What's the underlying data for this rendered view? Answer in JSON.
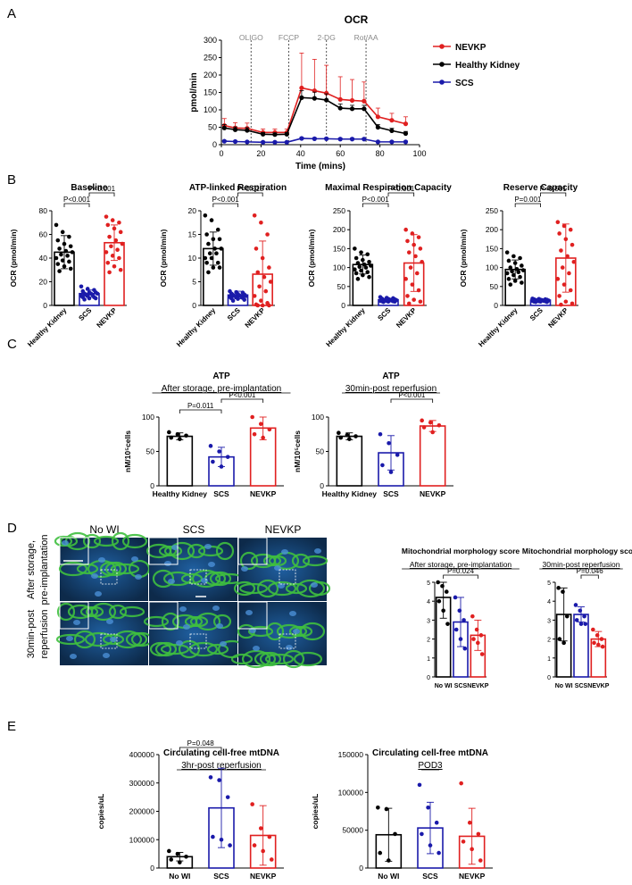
{
  "panel_letters": [
    "A",
    "B",
    "C",
    "D",
    "E"
  ],
  "colors": {
    "healthy": "#000000",
    "scs": "#1a1aaa",
    "nevkp": "#e02020",
    "muted": "#888888"
  },
  "chart_data": [
    {
      "id": "A",
      "type": "line",
      "title": "OCR",
      "subtitle": "",
      "xlabel": "Time (mins)",
      "ylabel": "pmol/min",
      "xlim": [
        0,
        100
      ],
      "ylim": [
        0,
        300
      ],
      "xticks": [
        0,
        20,
        40,
        60,
        80,
        100
      ],
      "yticks": [
        0,
        50,
        100,
        150,
        200,
        250,
        300
      ],
      "injections": [
        {
          "label": "OLIGO",
          "x": 15
        },
        {
          "label": "FCCP",
          "x": 34
        },
        {
          "label": "2-DG",
          "x": 53
        },
        {
          "label": "Rot/AA",
          "x": 73
        }
      ],
      "legend_position": "top-right",
      "series": [
        {
          "name": "NEVKP",
          "color": "nevkp",
          "x": [
            1.5,
            7,
            13,
            21,
            27,
            33,
            40.5,
            47,
            53,
            60,
            66,
            72,
            79,
            86,
            93
          ],
          "y": [
            55,
            48,
            47,
            35,
            35,
            35,
            163,
            155,
            148,
            130,
            127,
            125,
            80,
            70,
            60
          ],
          "err": [
            20,
            15,
            15,
            10,
            10,
            10,
            100,
            90,
            80,
            65,
            60,
            55,
            25,
            20,
            20
          ]
        },
        {
          "name": "Healthy Kidney",
          "color": "healthy",
          "x": [
            1.5,
            7,
            13,
            21,
            27,
            33,
            40.5,
            47,
            53,
            60,
            66,
            72,
            79,
            86,
            93
          ],
          "y": [
            48,
            43,
            41,
            30,
            29,
            30,
            135,
            133,
            128,
            105,
            103,
            103,
            50,
            40,
            32
          ],
          "err": [
            10,
            8,
            8,
            5,
            5,
            5,
            20,
            18,
            18,
            12,
            10,
            10,
            8,
            7,
            6
          ]
        },
        {
          "name": "SCS",
          "color": "scs",
          "x": [
            1.5,
            7,
            13,
            21,
            27,
            33,
            40.5,
            47,
            53,
            60,
            66,
            72,
            79,
            86,
            93
          ],
          "y": [
            10,
            9,
            8,
            7,
            7,
            7,
            18,
            17,
            17,
            16,
            16,
            16,
            8,
            8,
            8
          ],
          "err": [
            2,
            2,
            2,
            2,
            2,
            2,
            3,
            3,
            3,
            3,
            3,
            3,
            2,
            2,
            2
          ]
        }
      ]
    },
    {
      "id": "B1",
      "type": "bar",
      "title": "Baseline",
      "subtitle": "",
      "ylabel": "OCR (pmol/min)",
      "ylim": [
        0,
        80
      ],
      "yticks": [
        0,
        20,
        40,
        60,
        80
      ],
      "categories": [
        "Healthy Kidney",
        "SCS",
        "NEVKP"
      ],
      "colors": [
        "healthy",
        "scs",
        "nevkp"
      ],
      "values": [
        45,
        10,
        53
      ],
      "err": [
        14,
        3,
        15
      ],
      "points": [
        [
          68,
          62,
          58,
          55,
          52,
          50,
          48,
          46,
          45,
          43,
          42,
          40,
          38,
          37,
          35,
          33,
          31,
          29
        ],
        [
          16,
          14,
          13,
          12,
          11,
          11,
          10,
          10,
          10,
          9,
          9,
          8,
          8,
          7,
          7,
          6,
          6,
          5
        ],
        [
          75,
          72,
          70,
          68,
          65,
          62,
          58,
          55,
          52,
          50,
          47,
          45,
          42,
          40,
          36,
          33,
          30,
          28
        ]
      ],
      "brackets": [
        {
          "a": 0,
          "b": 1,
          "label": "P<0.001",
          "level": 0
        },
        {
          "a": 1,
          "b": 2,
          "label": "P<0.001",
          "level": 1
        }
      ],
      "xlabels_rotated": true
    },
    {
      "id": "B2",
      "type": "bar",
      "title": "ATP-linked Respiration",
      "subtitle": "",
      "ylabel": "OCR (pmol/min)",
      "ylim": [
        0,
        20
      ],
      "yticks": [
        0,
        5,
        10,
        15,
        20
      ],
      "categories": [
        "Healthy Kidney",
        "SCS",
        "NEVKP"
      ],
      "colors": [
        "healthy",
        "scs",
        "nevkp"
      ],
      "values": [
        12,
        2.2,
        6.6
      ],
      "err": [
        3.5,
        0.8,
        7
      ],
      "points": [
        [
          19,
          18,
          16,
          15,
          14,
          14,
          13,
          12,
          12,
          11,
          11,
          10,
          10,
          9,
          9,
          8,
          8,
          7
        ],
        [
          3,
          2.8,
          2.7,
          2.5,
          2.4,
          2.3,
          2.2,
          2.1,
          2,
          2,
          1.9,
          1.8,
          1.7,
          1.6,
          1.5,
          1.4,
          1.2,
          1
        ],
        [
          19,
          17.5,
          15,
          12,
          10,
          8,
          7,
          6,
          5,
          4,
          3,
          2,
          1,
          0.5,
          0.2,
          0,
          0,
          0
        ]
      ],
      "brackets": [
        {
          "a": 0,
          "b": 1,
          "label": "P<0.001",
          "level": 0
        },
        {
          "a": 1,
          "b": 2,
          "label": "P=0.015",
          "level": 1
        }
      ],
      "xlabels_rotated": true
    },
    {
      "id": "B3",
      "type": "bar",
      "title": "Maximal Respiration Capacity",
      "subtitle": "",
      "ylabel": "OCR (pmol/min)",
      "ylim": [
        0,
        250
      ],
      "yticks": [
        0,
        50,
        100,
        150,
        200,
        250
      ],
      "categories": [
        "Healthy Kidney",
        "SCS",
        "NEVKP"
      ],
      "colors": [
        "healthy",
        "scs",
        "nevkp"
      ],
      "values": [
        108,
        15,
        112
      ],
      "err": [
        25,
        4,
        75
      ],
      "points": [
        [
          150,
          140,
          135,
          125,
          120,
          115,
          112,
          108,
          105,
          102,
          100,
          95,
          92,
          88,
          85,
          80,
          75,
          70
        ],
        [
          22,
          20,
          19,
          18,
          17,
          16,
          15,
          15,
          14,
          14,
          13,
          12,
          12,
          11,
          11,
          10,
          10,
          9
        ],
        [
          200,
          190,
          180,
          170,
          160,
          150,
          140,
          130,
          115,
          100,
          85,
          70,
          55,
          40,
          25,
          15,
          10,
          5
        ]
      ],
      "brackets": [
        {
          "a": 0,
          "b": 1,
          "label": "P<0.001",
          "level": 0
        },
        {
          "a": 1,
          "b": 2,
          "label": "P<0.001",
          "level": 1
        }
      ],
      "xlabels_rotated": true
    },
    {
      "id": "B4",
      "type": "bar",
      "title": "Reserve Capacity",
      "subtitle": "",
      "ylabel": "OCR (pmol/min)",
      "ylim": [
        0,
        250
      ],
      "yticks": [
        0,
        50,
        100,
        150,
        200,
        250
      ],
      "categories": [
        "Healthy Kidney",
        "SCS",
        "NEVKP"
      ],
      "colors": [
        "healthy",
        "scs",
        "nevkp"
      ],
      "values": [
        95,
        14,
        125
      ],
      "err": [
        25,
        3,
        90
      ],
      "points": [
        [
          140,
          130,
          125,
          118,
          112,
          105,
          100,
          96,
          93,
          90,
          88,
          85,
          80,
          75,
          70,
          65,
          60,
          55
        ],
        [
          18,
          17,
          16,
          16,
          15,
          15,
          14,
          14,
          13,
          13,
          12,
          12,
          11,
          11,
          10,
          10,
          9,
          9
        ],
        [
          220,
          210,
          200,
          190,
          175,
          160,
          145,
          130,
          115,
          100,
          85,
          70,
          55,
          40,
          25,
          10,
          5,
          2
        ]
      ],
      "brackets": [
        {
          "a": 0,
          "b": 1,
          "label": "P=0.001",
          "level": 0
        },
        {
          "a": 1,
          "b": 2,
          "label": "P<0.001",
          "level": 1
        }
      ],
      "xlabels_rotated": true
    },
    {
      "id": "C1",
      "type": "bar",
      "title": "ATP",
      "subtitle": "After storage, pre-implantation",
      "ylabel": "nM/10⁵cells",
      "ylim": [
        0,
        100
      ],
      "yticks": [
        0,
        50,
        100
      ],
      "categories": [
        "Healthy Kidney",
        "SCS",
        "NEVKP"
      ],
      "colors": [
        "healthy",
        "scs",
        "nevkp"
      ],
      "values": [
        72,
        42,
        84
      ],
      "err": [
        5,
        14,
        17
      ],
      "points": [
        [
          78,
          75,
          73,
          70,
          68
        ],
        [
          58,
          50,
          42,
          35,
          28
        ],
        [
          100,
          90,
          82,
          75,
          70
        ]
      ],
      "brackets": [
        {
          "a": 0,
          "b": 1,
          "label": "P=0.011",
          "level": 0
        },
        {
          "a": 1,
          "b": 2,
          "label": "P<0.001",
          "level": 1
        }
      ],
      "xlabels_rotated": false
    },
    {
      "id": "C2",
      "type": "bar",
      "title": "ATP",
      "subtitle": "30min-post reperfusion",
      "ylabel": "nM/10⁵cells",
      "ylim": [
        0,
        100
      ],
      "yticks": [
        0,
        50,
        100
      ],
      "categories": [
        "Healthy Kidney",
        "SCS",
        "NEVKP"
      ],
      "colors": [
        "healthy",
        "scs",
        "nevkp"
      ],
      "values": [
        72,
        48,
        87
      ],
      "err": [
        5,
        25,
        8
      ],
      "points": [
        [
          77,
          74,
          72,
          70,
          68
        ],
        [
          75,
          62,
          45,
          30,
          20
        ],
        [
          95,
          92,
          88,
          85,
          78
        ]
      ],
      "brackets": [
        {
          "a": 1,
          "b": 2,
          "label": "P<0.001",
          "level": 1
        }
      ],
      "xlabels_rotated": false
    },
    {
      "id": "D1",
      "type": "bar",
      "title": "Mitochondrial morphology score",
      "subtitle": "After storage, pre-implantation",
      "ylabel": "",
      "ylim": [
        0,
        5
      ],
      "yticks": [
        0,
        1,
        2,
        3,
        4,
        5
      ],
      "categories": [
        "No WI",
        "SCS",
        "NEVKP"
      ],
      "colors": [
        "healthy",
        "scs",
        "nevkp"
      ],
      "values": [
        4.2,
        2.9,
        2.2
      ],
      "err": [
        1.1,
        1.3,
        0.8
      ],
      "points": [
        [
          5,
          4.8,
          4.5,
          4,
          3.5,
          2.8
        ],
        [
          4.2,
          3.5,
          3,
          2.5,
          2,
          1.5
        ],
        [
          3.2,
          2.5,
          2.2,
          2,
          1.8,
          1.2
        ]
      ],
      "brackets": [
        {
          "a": 0,
          "b": 2,
          "label": "P=0.024",
          "level": 0
        }
      ],
      "xlabels_rotated": false
    },
    {
      "id": "D2",
      "type": "bar",
      "title": "Mitochondrial morphology score",
      "subtitle": "30min-post reperfusion",
      "ylabel": "",
      "ylim": [
        0,
        5
      ],
      "yticks": [
        0,
        1,
        2,
        3,
        4,
        5
      ],
      "categories": [
        "No WI",
        "SCS",
        "NEVKP"
      ],
      "colors": [
        "healthy",
        "scs",
        "nevkp"
      ],
      "values": [
        3.3,
        3.3,
        2.0
      ],
      "err": [
        1.4,
        0.4,
        0.4
      ],
      "points": [
        [
          4.7,
          4.5,
          3.2,
          2,
          1.8
        ],
        [
          3.8,
          3.5,
          3.2,
          3,
          2.8,
          2.8
        ],
        [
          2.5,
          2.2,
          2,
          1.8,
          1.7,
          1.6
        ]
      ],
      "brackets": [
        {
          "a": 1,
          "b": 2,
          "label": "P=0.046",
          "level": 0
        }
      ],
      "xlabels_rotated": false
    },
    {
      "id": "E1",
      "type": "bar",
      "title": "Circulating cell-free mtDNA",
      "subtitle": "3hr-post reperfusion",
      "ylabel": "copies/uL",
      "ylim": [
        0,
        400000
      ],
      "yticks": [
        0,
        100000,
        200000,
        300000,
        400000
      ],
      "categories": [
        "No WI",
        "SCS",
        "NEVKP"
      ],
      "colors": [
        "healthy",
        "scs",
        "nevkp"
      ],
      "values": [
        40000,
        212000,
        115000
      ],
      "err": [
        15000,
        140000,
        105000
      ],
      "points": [
        [
          60000,
          50000,
          40000,
          30000,
          20000
        ],
        [
          320000,
          310000,
          250000,
          110000,
          100000,
          80000
        ],
        [
          225000,
          140000,
          110000,
          80000,
          60000,
          30000
        ]
      ],
      "brackets": [
        {
          "a": 0,
          "b": 1,
          "label": "P=0.048",
          "level": 0
        }
      ],
      "xlabels_rotated": false
    },
    {
      "id": "E2",
      "type": "bar",
      "title": "Circulating cell-free mtDNA",
      "subtitle": "POD3",
      "ylabel": "copies/uL",
      "ylim": [
        0,
        150000
      ],
      "yticks": [
        0,
        50000,
        100000,
        150000
      ],
      "categories": [
        "No WI",
        "SCS",
        "NEVKP"
      ],
      "colors": [
        "healthy",
        "scs",
        "nevkp"
      ],
      "values": [
        44000,
        53000,
        42000
      ],
      "err": [
        35000,
        34000,
        37000
      ],
      "points": [
        [
          80000,
          78000,
          45000,
          20000,
          10000
        ],
        [
          110000,
          80000,
          60000,
          45000,
          30000,
          20000
        ],
        [
          112000,
          60000,
          45000,
          35000,
          25000,
          10000
        ]
      ],
      "brackets": [],
      "xlabels_rotated": false
    }
  ],
  "micrographs": {
    "column_labels": [
      "No WI",
      "SCS",
      "NEVKP"
    ],
    "row_labels": [
      [
        "After storage,",
        "pre-implantation"
      ],
      [
        "30min-post",
        "reperfusion"
      ]
    ]
  }
}
